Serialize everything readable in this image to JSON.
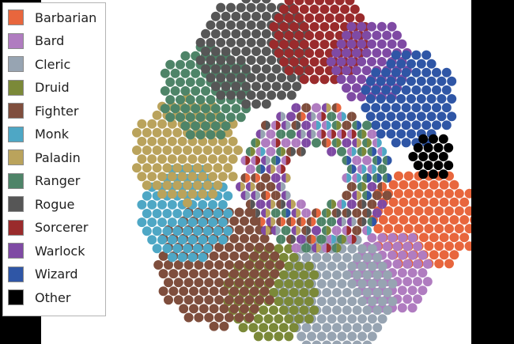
{
  "chart_data": {
    "type": "packed-bubble",
    "title": "",
    "legend_position": "top-left",
    "categories": [
      "Barbarian",
      "Bard",
      "Cleric",
      "Druid",
      "Fighter",
      "Monk",
      "Paladin",
      "Ranger",
      "Rogue",
      "Sorcerer",
      "Warlock",
      "Wizard",
      "Other"
    ],
    "colors": {
      "Barbarian": "#e8663d",
      "Bard": "#b07cc0",
      "Cleric": "#97a4b2",
      "Druid": "#7b8938",
      "Fighter": "#7f4e3d",
      "Monk": "#4ea7c5",
      "Paladin": "#baa35c",
      "Ranger": "#4e8468",
      "Rogue": "#565656",
      "Sorcerer": "#9a2b2c",
      "Warlock": "#7f4aa4",
      "Wizard": "#2f56a6",
      "Other": "#000000"
    },
    "clusters": [
      {
        "name": "Barbarian",
        "count": 95
      },
      {
        "name": "Bard",
        "count": 60
      },
      {
        "name": "Cleric",
        "count": 125
      },
      {
        "name": "Druid",
        "count": 80
      },
      {
        "name": "Fighter",
        "count": 135
      },
      {
        "name": "Monk",
        "count": 80
      },
      {
        "name": "Paladin",
        "count": 100
      },
      {
        "name": "Ranger",
        "count": 75
      },
      {
        "name": "Rogue",
        "count": 115
      },
      {
        "name": "Sorcerer",
        "count": 85
      },
      {
        "name": "Warlock",
        "count": 60
      },
      {
        "name": "Wizard",
        "count": 80
      },
      {
        "name": "Other",
        "count": 18
      },
      {
        "name": "Multiclass",
        "count": 200
      }
    ]
  }
}
